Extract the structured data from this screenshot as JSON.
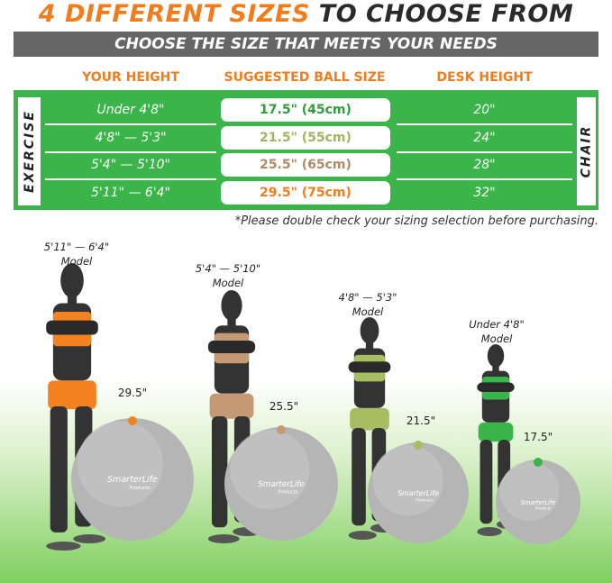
{
  "header": {
    "title_highlight": "4 DIFFERENT SIZES",
    "title_rest": "TO CHOOSE FROM",
    "subtitle": "CHOOSE THE SIZE THAT MEETS YOUR NEEDS"
  },
  "table": {
    "columns": [
      "YOUR HEIGHT",
      "SUGGESTED BALL SIZE",
      "DESK HEIGHT"
    ],
    "left_label": "EXERCISE",
    "right_label": "CHAIR",
    "rows": [
      {
        "height": "Under 4'8\"",
        "ball": "17.5\" (45cm)",
        "desk": "20\"",
        "color": "#2f9a3e"
      },
      {
        "height": "4'8\" — 5'3\"",
        "ball": "21.5\" (55cm)",
        "desk": "24\"",
        "color": "#a3b35e"
      },
      {
        "height": "5'4\" — 5'10\"",
        "ball": "25.5\" (65cm)",
        "desk": "28\"",
        "color": "#b18a68"
      },
      {
        "height": "5'11\" — 6'4\"",
        "ball": "29.5\" (75cm)",
        "desk": "32\"",
        "color": "#f07c1b"
      }
    ],
    "note": "*Please double check your sizing selection before purchasing."
  },
  "models": [
    {
      "height": "5'11\" — 6'4\"",
      "model": "Model",
      "ball": "29.5\"",
      "color": "#f58220"
    },
    {
      "height": "5'4\" — 5'10\"",
      "model": "Model",
      "ball": "25.5\"",
      "color": "#c49a74"
    },
    {
      "height": "4'8\" — 5'3\"",
      "model": "Model",
      "ball": "21.5\"",
      "color": "#a7bd61"
    },
    {
      "height": "Under 4'8\"",
      "model": "Model",
      "ball": "17.5\"",
      "color": "#39b54a"
    }
  ],
  "brand": {
    "logo": "SmarterLife",
    "sub": "Products"
  },
  "colors": {
    "accent": "#f07c1b",
    "green": "#3bb44a",
    "bar": "#666666"
  }
}
